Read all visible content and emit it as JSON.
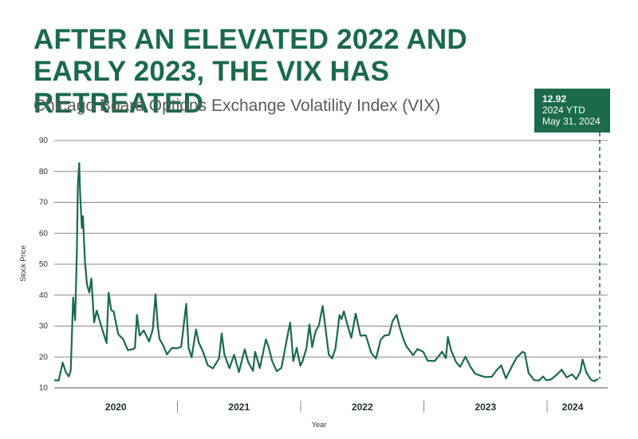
{
  "header": {
    "title": "AFTER AN ELEVATED 2022 AND EARLY 2023, THE VIX HAS RETREATED",
    "subtitle": "Chicago Board Options Exchange Volatility Index (VIX)"
  },
  "callout": {
    "value": "12.92",
    "line2": "2024 YTD",
    "line3": "May 31, 2024"
  },
  "colors": {
    "line": "#1b6a4a",
    "accent": "#1b6a4a",
    "grid": "#888888"
  },
  "chart_data": {
    "type": "line",
    "title": "Chicago Board Options Exchange Volatility Index (VIX)",
    "xlabel": "Year",
    "ylabel": "Stock Price",
    "ylim": [
      10,
      90
    ],
    "yticks": [
      10,
      20,
      30,
      40,
      50,
      60,
      70,
      80,
      90
    ],
    "x_categories": [
      "2020",
      "2021",
      "2022",
      "2023",
      "2024"
    ],
    "grid": true,
    "x_range": [
      "2020-01-02",
      "2024-05-31"
    ],
    "end_marker": {
      "date": "2024-05-31",
      "value": 12.92
    },
    "series": [
      {
        "points": [
          [
            "2020-01-02",
            12.5
          ],
          [
            "2020-01-15",
            12.4
          ],
          [
            "2020-01-27",
            18.2
          ],
          [
            "2020-02-05",
            15.2
          ],
          [
            "2020-02-14",
            13.7
          ],
          [
            "2020-02-20",
            15.6
          ],
          [
            "2020-02-27",
            39.2
          ],
          [
            "2020-03-04",
            31.9
          ],
          [
            "2020-03-09",
            54.5
          ],
          [
            "2020-03-12",
            75.5
          ],
          [
            "2020-03-16",
            82.7
          ],
          [
            "2020-03-19",
            72.0
          ],
          [
            "2020-03-24",
            61.7
          ],
          [
            "2020-03-27",
            65.5
          ],
          [
            "2020-04-02",
            50.9
          ],
          [
            "2020-04-08",
            43.4
          ],
          [
            "2020-04-15",
            40.8
          ],
          [
            "2020-04-21",
            45.4
          ],
          [
            "2020-04-29",
            31.2
          ],
          [
            "2020-05-07",
            35.0
          ],
          [
            "2020-05-15",
            31.9
          ],
          [
            "2020-05-26",
            28.0
          ],
          [
            "2020-06-05",
            24.5
          ],
          [
            "2020-06-11",
            40.8
          ],
          [
            "2020-06-19",
            35.1
          ],
          [
            "2020-06-26",
            34.7
          ],
          [
            "2020-07-10",
            27.3
          ],
          [
            "2020-07-24",
            25.8
          ],
          [
            "2020-08-07",
            22.2
          ],
          [
            "2020-08-21",
            22.5
          ],
          [
            "2020-08-28",
            22.9
          ],
          [
            "2020-09-03",
            33.6
          ],
          [
            "2020-09-11",
            26.9
          ],
          [
            "2020-09-23",
            28.6
          ],
          [
            "2020-10-09",
            25.0
          ],
          [
            "2020-10-20",
            29.0
          ],
          [
            "2020-10-28",
            40.3
          ],
          [
            "2020-11-04",
            29.6
          ],
          [
            "2020-11-09",
            25.8
          ],
          [
            "2020-11-20",
            23.7
          ],
          [
            "2020-12-01",
            20.8
          ],
          [
            "2020-12-15",
            22.9
          ],
          [
            "2020-12-31",
            22.8
          ],
          [
            "2021-01-12",
            23.3
          ],
          [
            "2021-01-27",
            37.2
          ],
          [
            "2021-02-03",
            22.9
          ],
          [
            "2021-02-12",
            19.9
          ],
          [
            "2021-02-25",
            28.9
          ],
          [
            "2021-03-05",
            24.7
          ],
          [
            "2021-03-18",
            21.6
          ],
          [
            "2021-04-01",
            17.3
          ],
          [
            "2021-04-16",
            16.3
          ],
          [
            "2021-05-04",
            19.5
          ],
          [
            "2021-05-12",
            27.6
          ],
          [
            "2021-05-20",
            20.7
          ],
          [
            "2021-06-04",
            16.4
          ],
          [
            "2021-06-18",
            20.7
          ],
          [
            "2021-07-02",
            15.1
          ],
          [
            "2021-07-19",
            22.5
          ],
          [
            "2021-07-30",
            18.2
          ],
          [
            "2021-08-13",
            15.5
          ],
          [
            "2021-08-19",
            21.7
          ],
          [
            "2021-09-02",
            16.4
          ],
          [
            "2021-09-20",
            25.7
          ],
          [
            "2021-09-28",
            23.3
          ],
          [
            "2021-10-08",
            18.8
          ],
          [
            "2021-10-22",
            15.4
          ],
          [
            "2021-11-05",
            16.5
          ],
          [
            "2021-11-26",
            28.6
          ],
          [
            "2021-12-01",
            31.1
          ],
          [
            "2021-12-10",
            18.7
          ],
          [
            "2021-12-20",
            22.9
          ],
          [
            "2021-12-31",
            17.2
          ],
          [
            "2022-01-07",
            18.8
          ],
          [
            "2022-01-18",
            22.8
          ],
          [
            "2022-01-27",
            30.5
          ],
          [
            "2022-02-04",
            23.2
          ],
          [
            "2022-02-14",
            28.3
          ],
          [
            "2022-02-24",
            30.3
          ],
          [
            "2022-03-07",
            36.5
          ],
          [
            "2022-03-15",
            29.8
          ],
          [
            "2022-03-25",
            20.8
          ],
          [
            "2022-04-04",
            19.5
          ],
          [
            "2022-04-14",
            22.7
          ],
          [
            "2022-04-26",
            33.5
          ],
          [
            "2022-05-02",
            32.3
          ],
          [
            "2022-05-09",
            34.8
          ],
          [
            "2022-05-18",
            31.0
          ],
          [
            "2022-05-31",
            26.2
          ],
          [
            "2022-06-13",
            34.0
          ],
          [
            "2022-06-27",
            26.9
          ],
          [
            "2022-07-13",
            27.0
          ],
          [
            "2022-07-29",
            21.3
          ],
          [
            "2022-08-12",
            19.5
          ],
          [
            "2022-08-26",
            25.6
          ],
          [
            "2022-09-06",
            26.9
          ],
          [
            "2022-09-20",
            27.2
          ],
          [
            "2022-09-30",
            31.6
          ],
          [
            "2022-10-12",
            33.6
          ],
          [
            "2022-10-21",
            29.7
          ],
          [
            "2022-11-01",
            25.9
          ],
          [
            "2022-11-10",
            23.5
          ],
          [
            "2022-11-30",
            20.6
          ],
          [
            "2022-12-13",
            22.6
          ],
          [
            "2022-12-30",
            21.7
          ],
          [
            "2023-01-12",
            18.8
          ],
          [
            "2023-02-02",
            18.7
          ],
          [
            "2023-02-24",
            21.7
          ],
          [
            "2023-03-07",
            19.6
          ],
          [
            "2023-03-13",
            26.5
          ],
          [
            "2023-03-22",
            22.3
          ],
          [
            "2023-04-06",
            18.4
          ],
          [
            "2023-04-18",
            16.8
          ],
          [
            "2023-05-04",
            20.1
          ],
          [
            "2023-05-19",
            16.8
          ],
          [
            "2023-06-02",
            14.6
          ],
          [
            "2023-06-16",
            14.0
          ],
          [
            "2023-07-03",
            13.5
          ],
          [
            "2023-07-21",
            13.6
          ],
          [
            "2023-08-04",
            15.7
          ],
          [
            "2023-08-18",
            17.3
          ],
          [
            "2023-09-01",
            13.1
          ],
          [
            "2023-09-21",
            17.5
          ],
          [
            "2023-10-03",
            19.8
          ],
          [
            "2023-10-20",
            21.7
          ],
          [
            "2023-10-27",
            21.3
          ],
          [
            "2023-11-07",
            14.8
          ],
          [
            "2023-11-24",
            12.5
          ],
          [
            "2023-12-08",
            12.4
          ],
          [
            "2023-12-20",
            13.7
          ],
          [
            "2023-12-29",
            12.5
          ],
          [
            "2024-01-12",
            12.7
          ],
          [
            "2024-01-31",
            14.4
          ],
          [
            "2024-02-13",
            15.9
          ],
          [
            "2024-02-28",
            13.4
          ],
          [
            "2024-03-15",
            14.4
          ],
          [
            "2024-03-27",
            12.8
          ],
          [
            "2024-04-08",
            15.2
          ],
          [
            "2024-04-15",
            19.2
          ],
          [
            "2024-04-26",
            15.0
          ],
          [
            "2024-05-10",
            12.6
          ],
          [
            "2024-05-20",
            12.2
          ],
          [
            "2024-05-31",
            12.92
          ]
        ]
      }
    ]
  }
}
